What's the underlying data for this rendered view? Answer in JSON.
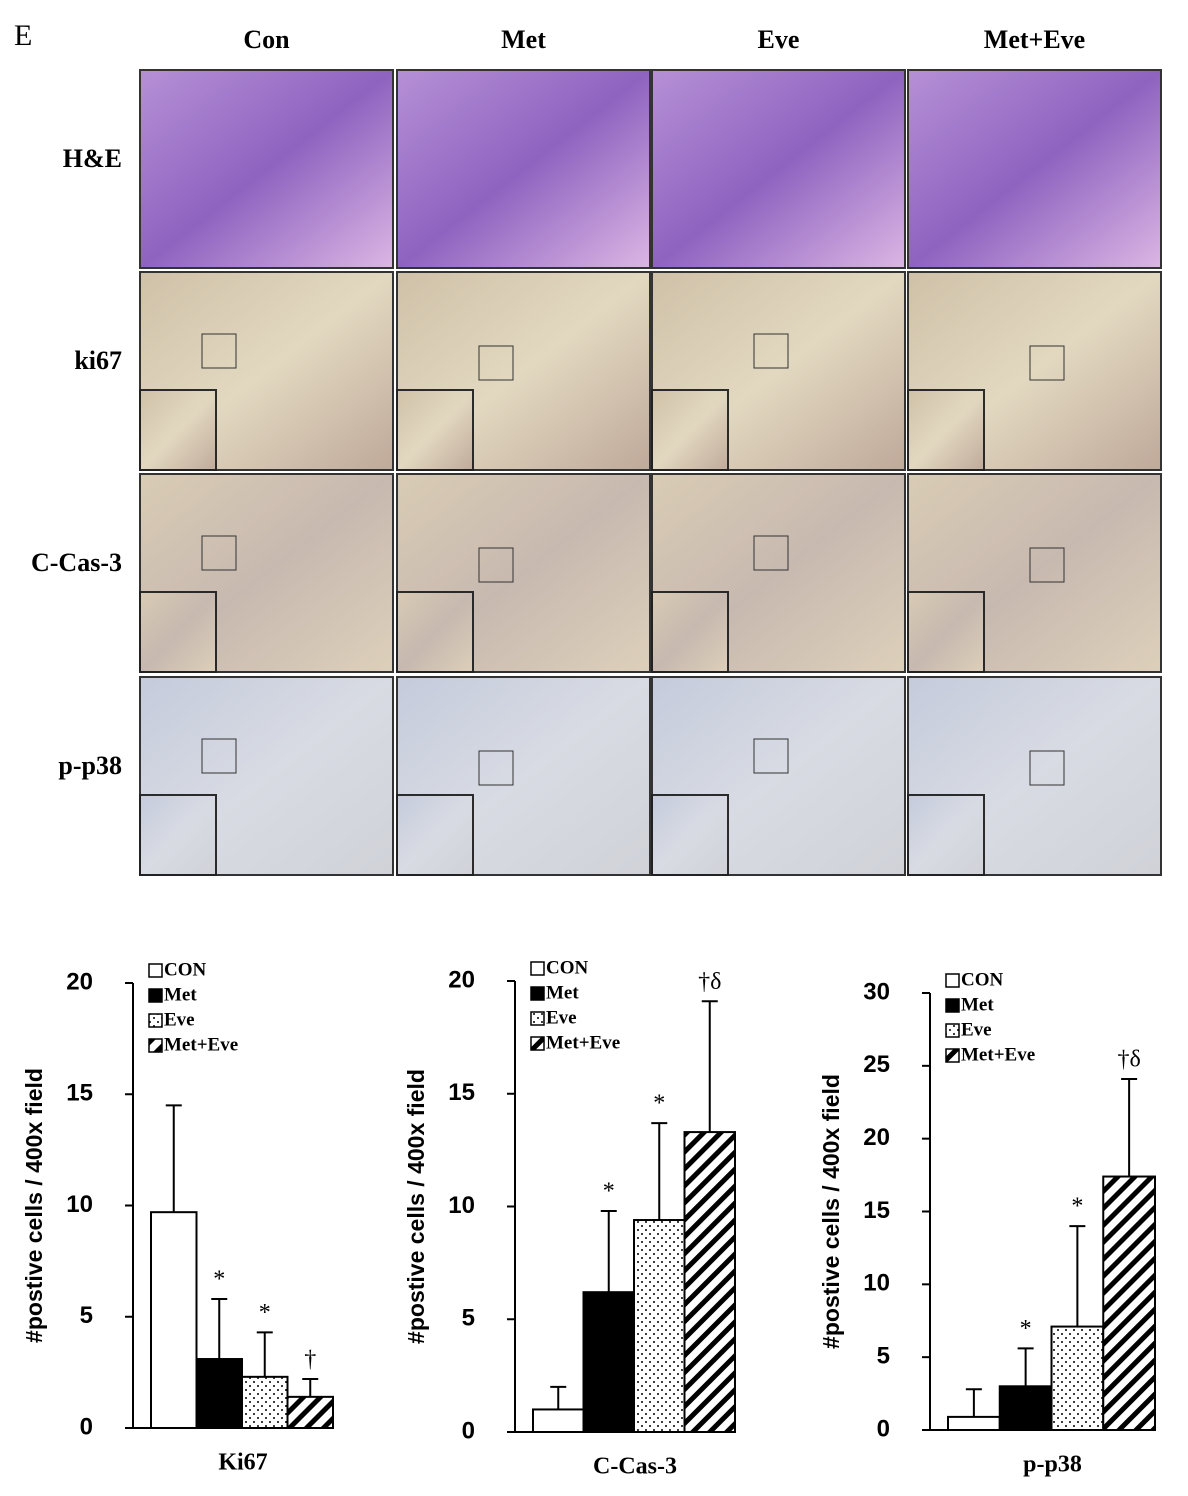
{
  "figure": {
    "panel_label": "E",
    "columns": [
      "Con",
      "Met",
      "Eve",
      "Met+Eve"
    ],
    "rows": [
      "H&E",
      "ki67",
      "C-Cas-3",
      "p-p38"
    ]
  },
  "chart_data": [
    {
      "type": "bar",
      "ylabel": "#postive cells / 400x field",
      "categories": [
        "Ki67"
      ],
      "ylim": [
        0,
        20
      ],
      "yticks": [
        0,
        5,
        10,
        15,
        20
      ],
      "series": [
        {
          "name": "CON",
          "color": "#ffffff",
          "values": [
            9.7
          ],
          "errors": [
            4.8
          ],
          "significance": [
            null
          ]
        },
        {
          "name": "Met",
          "color": "#000000",
          "values": [
            3.1
          ],
          "errors": [
            2.7
          ],
          "significance": [
            "*"
          ]
        },
        {
          "name": "Eve",
          "color": "#ffffff",
          "pattern": "dots",
          "values": [
            2.3
          ],
          "errors": [
            2.0
          ],
          "significance": [
            "*"
          ]
        },
        {
          "name": "Met+Eve",
          "color": "#ffffff",
          "pattern": "hatch",
          "values": [
            1.4
          ],
          "errors": [
            0.8
          ],
          "significance": [
            "†"
          ]
        }
      ]
    },
    {
      "type": "bar",
      "ylabel": "#postive cells / 400x field",
      "categories": [
        "C-Cas-3"
      ],
      "ylim": [
        0,
        20
      ],
      "yticks": [
        0,
        5,
        10,
        15,
        20
      ],
      "series": [
        {
          "name": "CON",
          "color": "#ffffff",
          "values": [
            1.0
          ],
          "errors": [
            1.0
          ],
          "significance": [
            null
          ]
        },
        {
          "name": "Met",
          "color": "#000000",
          "values": [
            6.2
          ],
          "errors": [
            3.6
          ],
          "significance": [
            "*"
          ]
        },
        {
          "name": "Eve",
          "color": "#ffffff",
          "pattern": "dots",
          "values": [
            9.4
          ],
          "errors": [
            4.3
          ],
          "significance": [
            "*"
          ]
        },
        {
          "name": "Met+Eve",
          "color": "#ffffff",
          "pattern": "hatch",
          "values": [
            13.3
          ],
          "errors": [
            5.8
          ],
          "significance": [
            "†δ"
          ]
        }
      ]
    },
    {
      "type": "bar",
      "ylabel": "#postive cells / 400x field",
      "categories": [
        "p-p38"
      ],
      "ylim": [
        0,
        30
      ],
      "yticks": [
        0,
        5,
        10,
        15,
        20,
        25,
        30
      ],
      "series": [
        {
          "name": "CON",
          "color": "#ffffff",
          "values": [
            0.9
          ],
          "errors": [
            1.9
          ],
          "significance": [
            null
          ]
        },
        {
          "name": "Met",
          "color": "#000000",
          "values": [
            3.0
          ],
          "errors": [
            2.6
          ],
          "significance": [
            "*"
          ]
        },
        {
          "name": "Eve",
          "color": "#ffffff",
          "pattern": "dots",
          "values": [
            7.1
          ],
          "errors": [
            6.9
          ],
          "significance": [
            "*"
          ]
        },
        {
          "name": "Met+Eve",
          "color": "#ffffff",
          "pattern": "hatch",
          "values": [
            17.4
          ],
          "errors": [
            6.7
          ],
          "significance": [
            "†δ"
          ]
        }
      ]
    }
  ]
}
